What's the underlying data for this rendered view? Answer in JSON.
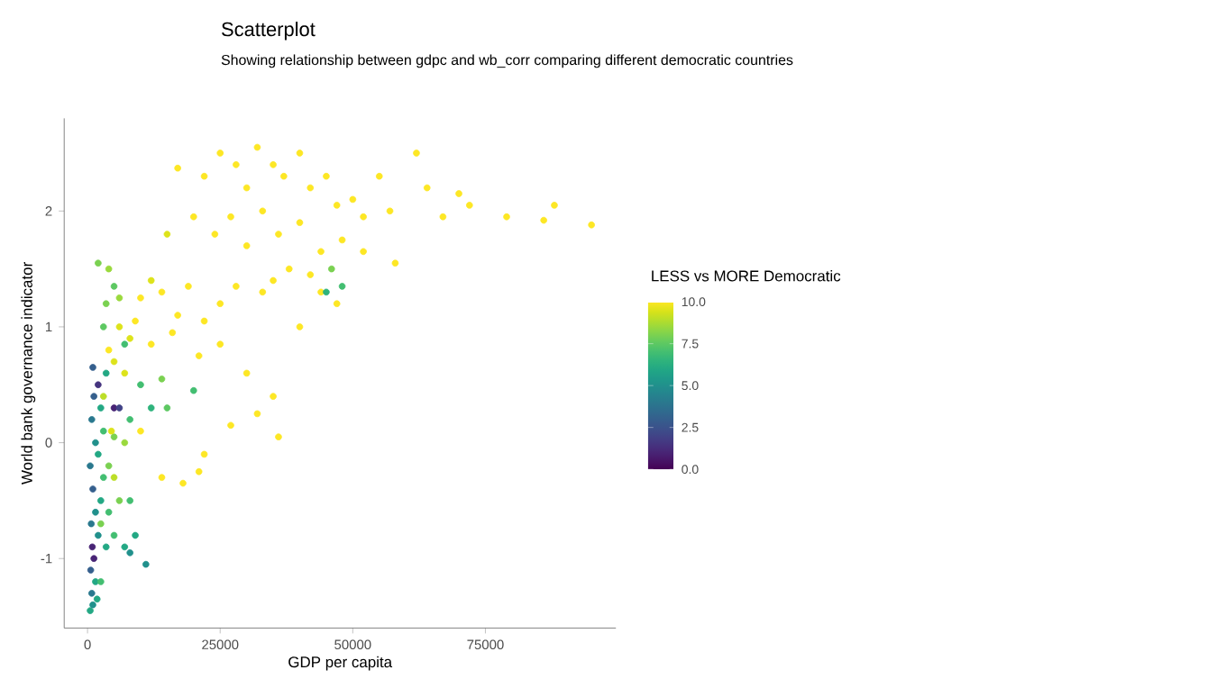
{
  "chart_data": {
    "type": "scatter",
    "title": "Scatterplot",
    "subtitle": "Showing relationship between gdpc and wb_corr comparing different democratic countries",
    "xlabel": "GDP per capita",
    "ylabel": "World bank governance indicator",
    "clabel": "LESS vs MORE Democratic",
    "marker": "circle",
    "xlim": [
      -4400,
      99600
    ],
    "ylim": [
      -1.6,
      2.8
    ],
    "xticks": [
      0,
      25000,
      50000,
      75000
    ],
    "yticks": [
      -1,
      0,
      1,
      2
    ],
    "clim": [
      0,
      10
    ],
    "cticks": [
      {
        "value": 0,
        "label": "0.0"
      },
      {
        "value": 2.5,
        "label": "2.5"
      },
      {
        "value": 5,
        "label": "5.0"
      },
      {
        "value": 7.5,
        "label": "7.5"
      },
      {
        "value": 10,
        "label": "10.0"
      }
    ],
    "x": [
      17000,
      22000,
      25000,
      28000,
      30000,
      32000,
      35000,
      37000,
      40000,
      42000,
      45000,
      47000,
      50000,
      52000,
      55000,
      57000,
      62000,
      64000,
      67000,
      70000,
      72000,
      79000,
      86000,
      88000,
      95000,
      58000,
      48000,
      52000,
      44000,
      40000,
      36000,
      33000,
      27000,
      24000,
      20000,
      15000,
      30000,
      38000,
      35000,
      33000,
      28000,
      25000,
      22000,
      19000,
      17000,
      14000,
      12000,
      10000,
      9000,
      8000,
      12000,
      16000,
      21000,
      25000,
      30000,
      32000,
      36000,
      44000,
      42000,
      40000,
      47000,
      35000,
      27000,
      22000,
      18000,
      14000,
      10000,
      7000,
      5000,
      4000,
      6000,
      21000,
      45000,
      48000,
      46000,
      2000,
      4000,
      5000,
      3500,
      3000,
      6000,
      7000,
      10000,
      14000,
      20000,
      15000,
      8000,
      5000,
      12000,
      500,
      1000,
      800,
      1500,
      600,
      1200,
      900,
      2000,
      700,
      1500,
      2500,
      1000,
      3000,
      500,
      2000,
      4000,
      1500,
      3000,
      800,
      2500,
      1200,
      2000,
      1000,
      3500,
      5000,
      6000,
      4000,
      5000,
      7000,
      8000,
      11000,
      9000,
      6000,
      5000,
      7000,
      8000,
      3500,
      2500,
      1800,
      3000,
      4500,
      2500
    ],
    "values": [
      2.37,
      2.3,
      2.5,
      2.4,
      2.2,
      2.55,
      2.4,
      2.3,
      2.5,
      2.2,
      2.3,
      2.05,
      2.1,
      1.95,
      2.3,
      2.0,
      2.5,
      2.2,
      1.95,
      2.15,
      2.05,
      1.95,
      1.92,
      2.05,
      1.88,
      1.55,
      1.75,
      1.65,
      1.65,
      1.9,
      1.8,
      2.0,
      1.95,
      1.8,
      1.95,
      1.8,
      1.7,
      1.5,
      1.4,
      1.3,
      1.35,
      1.2,
      1.05,
      1.35,
      1.1,
      1.3,
      1.4,
      1.25,
      1.05,
      0.9,
      0.85,
      0.95,
      0.75,
      0.85,
      0.6,
      0.25,
      0.05,
      1.3,
      1.45,
      1.0,
      1.2,
      0.4,
      0.15,
      -0.1,
      -0.35,
      -0.3,
      0.1,
      0.6,
      0.7,
      0.8,
      1.0,
      -0.25,
      1.3,
      1.35,
      1.5,
      1.55,
      1.5,
      1.35,
      1.2,
      1.0,
      1.25,
      0.85,
      0.5,
      0.55,
      0.45,
      0.3,
      0.2,
      0.05,
      0.3,
      -1.45,
      -1.4,
      -1.3,
      -1.2,
      -1.1,
      -1.0,
      -0.9,
      -0.8,
      -0.7,
      -0.6,
      -0.5,
      -0.4,
      -0.3,
      -0.2,
      -0.1,
      -0.2,
      0.0,
      0.1,
      0.2,
      0.3,
      0.4,
      0.5,
      0.65,
      0.6,
      0.3,
      0.3,
      -0.6,
      -0.8,
      -0.9,
      -0.95,
      -1.05,
      -0.8,
      -0.5,
      -0.3,
      0.0,
      -0.5,
      -0.9,
      -1.2,
      -1.35,
      0.4,
      0.1,
      -0.7
    ],
    "cvalues": [
      10,
      10,
      10,
      10,
      10,
      10,
      10,
      10,
      10,
      10,
      10,
      10,
      10,
      10,
      10,
      10,
      10,
      10,
      10,
      10,
      10,
      10,
      10,
      10,
      10,
      10,
      10,
      10,
      10,
      10,
      10,
      10,
      10,
      10,
      10,
      9.5,
      10,
      10,
      10,
      10,
      10,
      10,
      10,
      10,
      10,
      10,
      9.5,
      10,
      10,
      9.5,
      10,
      10,
      10,
      10,
      10,
      10,
      10,
      10,
      10,
      10,
      10,
      10,
      10,
      10,
      10,
      10,
      10,
      9.5,
      9.5,
      10,
      9.5,
      10,
      6.5,
      7,
      8,
      8,
      8.5,
      7.5,
      8,
      7.5,
      8.5,
      7,
      7,
      8,
      7,
      7.5,
      7,
      8,
      6.5,
      6,
      5,
      4,
      6,
      3,
      1,
      1,
      5,
      4,
      5,
      6,
      3,
      7,
      4,
      6,
      8,
      5,
      7,
      4,
      6,
      3,
      1.5,
      3,
      6,
      1,
      2,
      7,
      7,
      6,
      5,
      5,
      6,
      8,
      9,
      8.5,
      7,
      6,
      7,
      6,
      9,
      9.5,
      8
    ]
  }
}
